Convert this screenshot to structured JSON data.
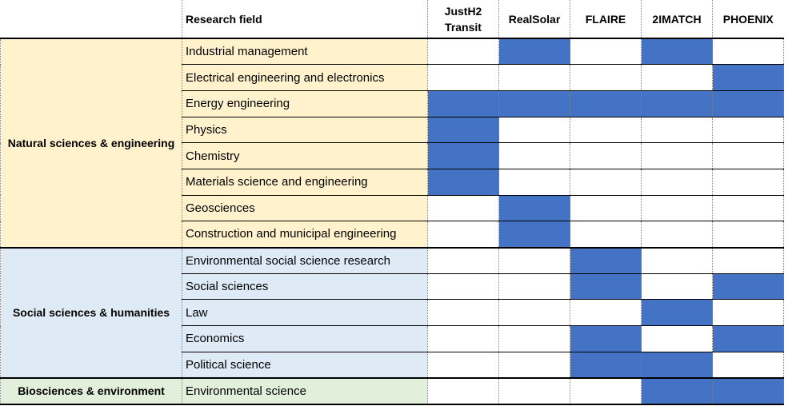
{
  "header": {
    "research_field": "Research field",
    "projects": [
      "JustH2 Transit",
      "RealSolar",
      "FLAIRE",
      "2IMATCH",
      "PHOENIX"
    ]
  },
  "colors": {
    "filled": "#4472c4",
    "natural_bg": "#fff2cc",
    "social_bg": "#deebf7",
    "bio_bg": "#e2efda"
  },
  "groups": [
    {
      "name": "Natural sciences & engineering",
      "color": "#fff2cc",
      "rows": [
        {
          "field": "Industrial management",
          "cells": [
            false,
            true,
            false,
            true,
            false
          ]
        },
        {
          "field": "Electrical engineering and electronics",
          "cells": [
            false,
            false,
            false,
            false,
            true
          ]
        },
        {
          "field": "Energy engineering",
          "cells": [
            true,
            true,
            true,
            true,
            true
          ]
        },
        {
          "field": "Physics",
          "cells": [
            true,
            false,
            false,
            false,
            false
          ]
        },
        {
          "field": "Chemistry",
          "cells": [
            true,
            false,
            false,
            false,
            false
          ]
        },
        {
          "field": "Materials science and engineering",
          "cells": [
            true,
            false,
            false,
            false,
            false
          ]
        },
        {
          "field": "Geosciences",
          "cells": [
            false,
            true,
            false,
            false,
            false
          ]
        },
        {
          "field": "Construction and municipal engineering",
          "cells": [
            false,
            true,
            false,
            false,
            false
          ]
        }
      ]
    },
    {
      "name": "Social sciences & humanities",
      "color": "#deebf7",
      "rows": [
        {
          "field": "Environmental social science research",
          "cells": [
            false,
            false,
            true,
            false,
            false
          ]
        },
        {
          "field": "Social sciences",
          "cells": [
            false,
            false,
            true,
            false,
            true
          ]
        },
        {
          "field": "Law",
          "cells": [
            false,
            false,
            false,
            true,
            false
          ]
        },
        {
          "field": "Economics",
          "cells": [
            false,
            false,
            true,
            false,
            true
          ]
        },
        {
          "field": "Political science",
          "cells": [
            false,
            false,
            true,
            true,
            false
          ]
        }
      ]
    },
    {
      "name": "Biosciences & environment",
      "color": "#e2efda",
      "rows": [
        {
          "field": "Environmental science",
          "cells": [
            false,
            false,
            false,
            true,
            true
          ]
        }
      ]
    }
  ]
}
